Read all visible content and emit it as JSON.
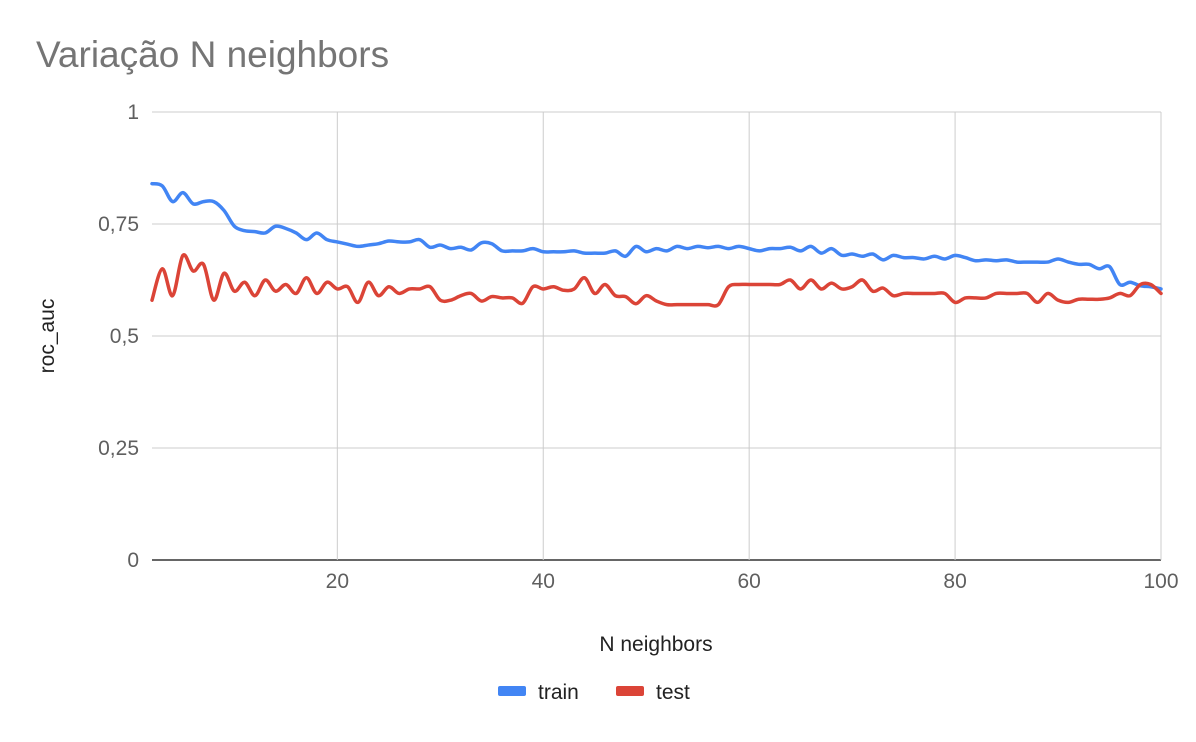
{
  "chart_data": {
    "type": "line",
    "title": "Variação N neighbors",
    "xlabel": "N neighbors",
    "ylabel": "roc_auc",
    "xlim": [
      2,
      100
    ],
    "ylim": [
      0,
      1
    ],
    "x_ticks": [
      20,
      40,
      60,
      80,
      100
    ],
    "x_tick_labels": [
      "20",
      "40",
      "60",
      "80",
      "100"
    ],
    "y_ticks": [
      0,
      0.25,
      0.5,
      0.75,
      1
    ],
    "y_tick_labels": [
      "0",
      "0,25",
      "0,5",
      "0,75",
      "1"
    ],
    "grid": true,
    "legend_position": "bottom",
    "series": [
      {
        "name": "train",
        "color": "#4285f4",
        "x": [
          2,
          3,
          4,
          5,
          6,
          7,
          8,
          9,
          10,
          11,
          12,
          13,
          14,
          15,
          16,
          17,
          18,
          19,
          20,
          21,
          22,
          23,
          24,
          25,
          26,
          27,
          28,
          29,
          30,
          31,
          32,
          33,
          34,
          35,
          36,
          37,
          38,
          39,
          40,
          41,
          42,
          43,
          44,
          45,
          46,
          47,
          48,
          49,
          50,
          51,
          52,
          53,
          54,
          55,
          56,
          57,
          58,
          59,
          60,
          61,
          62,
          63,
          64,
          65,
          66,
          67,
          68,
          69,
          70,
          71,
          72,
          73,
          74,
          75,
          76,
          77,
          78,
          79,
          80,
          81,
          82,
          83,
          84,
          85,
          86,
          87,
          88,
          89,
          90,
          91,
          92,
          93,
          94,
          95,
          96,
          97,
          98,
          99,
          100
        ],
        "y": [
          0.84,
          0.835,
          0.8,
          0.82,
          0.795,
          0.8,
          0.8,
          0.78,
          0.745,
          0.735,
          0.733,
          0.73,
          0.745,
          0.74,
          0.73,
          0.715,
          0.73,
          0.715,
          0.71,
          0.705,
          0.7,
          0.703,
          0.706,
          0.712,
          0.71,
          0.71,
          0.715,
          0.698,
          0.703,
          0.695,
          0.698,
          0.692,
          0.708,
          0.706,
          0.69,
          0.69,
          0.69,
          0.695,
          0.688,
          0.688,
          0.688,
          0.69,
          0.685,
          0.685,
          0.685,
          0.69,
          0.678,
          0.7,
          0.688,
          0.695,
          0.69,
          0.7,
          0.695,
          0.7,
          0.697,
          0.7,
          0.695,
          0.7,
          0.695,
          0.69,
          0.695,
          0.695,
          0.698,
          0.69,
          0.7,
          0.685,
          0.695,
          0.68,
          0.683,
          0.678,
          0.683,
          0.67,
          0.68,
          0.675,
          0.675,
          0.672,
          0.678,
          0.672,
          0.68,
          0.675,
          0.668,
          0.67,
          0.668,
          0.67,
          0.665,
          0.665,
          0.665,
          0.665,
          0.672,
          0.665,
          0.66,
          0.66,
          0.65,
          0.655,
          0.615,
          0.62,
          0.612,
          0.61,
          0.605
        ]
      },
      {
        "name": "test",
        "color": "#db4437",
        "x": [
          2,
          3,
          4,
          5,
          6,
          7,
          8,
          9,
          10,
          11,
          12,
          13,
          14,
          15,
          16,
          17,
          18,
          19,
          20,
          21,
          22,
          23,
          24,
          25,
          26,
          27,
          28,
          29,
          30,
          31,
          32,
          33,
          34,
          35,
          36,
          37,
          38,
          39,
          40,
          41,
          42,
          43,
          44,
          45,
          46,
          47,
          48,
          49,
          50,
          51,
          52,
          53,
          54,
          55,
          56,
          57,
          58,
          59,
          60,
          61,
          62,
          63,
          64,
          65,
          66,
          67,
          68,
          69,
          70,
          71,
          72,
          73,
          74,
          75,
          76,
          77,
          78,
          79,
          80,
          81,
          82,
          83,
          84,
          85,
          86,
          87,
          88,
          89,
          90,
          91,
          92,
          93,
          94,
          95,
          96,
          97,
          98,
          99,
          100
        ],
        "y": [
          0.58,
          0.65,
          0.59,
          0.68,
          0.645,
          0.66,
          0.58,
          0.64,
          0.6,
          0.62,
          0.59,
          0.625,
          0.6,
          0.615,
          0.595,
          0.63,
          0.595,
          0.62,
          0.605,
          0.61,
          0.575,
          0.62,
          0.59,
          0.61,
          0.595,
          0.605,
          0.605,
          0.61,
          0.58,
          0.58,
          0.59,
          0.595,
          0.578,
          0.588,
          0.585,
          0.585,
          0.573,
          0.61,
          0.605,
          0.61,
          0.602,
          0.605,
          0.63,
          0.595,
          0.615,
          0.59,
          0.588,
          0.572,
          0.59,
          0.578,
          0.57,
          0.57,
          0.57,
          0.57,
          0.57,
          0.57,
          0.61,
          0.615,
          0.615,
          0.615,
          0.615,
          0.615,
          0.625,
          0.605,
          0.625,
          0.605,
          0.618,
          0.605,
          0.61,
          0.625,
          0.6,
          0.607,
          0.59,
          0.595,
          0.595,
          0.595,
          0.595,
          0.595,
          0.575,
          0.585,
          0.585,
          0.585,
          0.595,
          0.595,
          0.595,
          0.595,
          0.575,
          0.595,
          0.58,
          0.575,
          0.582,
          0.582,
          0.582,
          0.585,
          0.595,
          0.59,
          0.615,
          0.615,
          0.595
        ]
      }
    ]
  }
}
